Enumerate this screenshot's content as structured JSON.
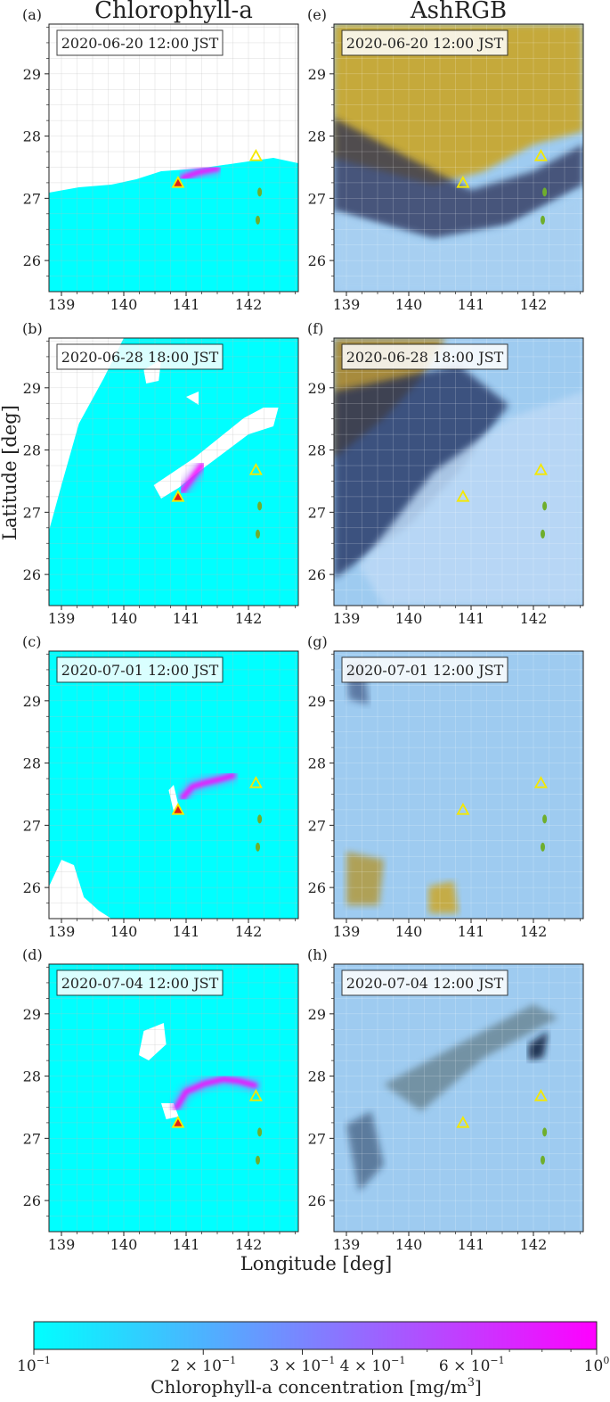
{
  "figure": {
    "column_titles": [
      "Chlorophyll-a",
      "AshRGB"
    ],
    "ylabel": "Latitude [deg]",
    "xlabel": "Longitude [deg]"
  },
  "chart_data": [
    {
      "type": "heatmap",
      "panel_label": "(a)",
      "column": "Chlorophyll-a",
      "timestamp": "2020-06-20 12:00 JST",
      "xlim": [
        138.8,
        142.8
      ],
      "ylim": [
        25.5,
        29.8
      ],
      "xticks": [
        139,
        140,
        141,
        142
      ],
      "yticks": [
        26,
        27,
        28,
        29
      ],
      "grid": true,
      "markers": [
        {
          "lon": 140.87,
          "lat": 27.25,
          "style": "red-triangle"
        },
        {
          "lon": 142.12,
          "lat": 27.68,
          "style": "yellow-triangle"
        }
      ],
      "islands": [
        {
          "lon": 142.18,
          "lat": 27.1
        },
        {
          "lon": 142.15,
          "lat": 26.65
        }
      ],
      "plume": [
        [
          140.95,
          27.33
        ],
        [
          141.2,
          27.42
        ],
        [
          141.5,
          27.48
        ]
      ]
    },
    {
      "type": "heatmap",
      "panel_label": "(e)",
      "column": "AshRGB",
      "timestamp": "2020-06-20 12:00 JST",
      "xlim": [
        138.8,
        142.8
      ],
      "ylim": [
        25.5,
        29.8
      ],
      "xticks": [
        139,
        140,
        141,
        142
      ],
      "yticks": [
        26,
        27,
        28,
        29
      ],
      "grid": true,
      "markers": [
        {
          "lon": 140.87,
          "lat": 27.25,
          "style": "yellow-triangle"
        },
        {
          "lon": 142.12,
          "lat": 27.68,
          "style": "yellow-triangle"
        }
      ],
      "islands": [
        {
          "lon": 142.18,
          "lat": 27.1
        },
        {
          "lon": 142.15,
          "lat": 26.65
        }
      ],
      "plume": []
    },
    {
      "type": "heatmap",
      "panel_label": "(b)",
      "column": "Chlorophyll-a",
      "timestamp": "2020-06-28 18:00 JST",
      "xlim": [
        138.8,
        142.8
      ],
      "ylim": [
        25.5,
        29.8
      ],
      "xticks": [
        139,
        140,
        141,
        142
      ],
      "yticks": [
        26,
        27,
        28,
        29
      ],
      "grid": true,
      "markers": [
        {
          "lon": 140.87,
          "lat": 27.25,
          "style": "red-triangle"
        },
        {
          "lon": 142.12,
          "lat": 27.68,
          "style": "yellow-triangle"
        }
      ],
      "islands": [
        {
          "lon": 142.18,
          "lat": 27.1
        },
        {
          "lon": 142.15,
          "lat": 26.65
        }
      ],
      "plume": [
        [
          140.95,
          27.35
        ],
        [
          141.1,
          27.55
        ],
        [
          141.25,
          27.75
        ]
      ]
    },
    {
      "type": "heatmap",
      "panel_label": "(f)",
      "column": "AshRGB",
      "timestamp": "2020-06-28 18:00 JST",
      "xlim": [
        138.8,
        142.8
      ],
      "ylim": [
        25.5,
        29.8
      ],
      "xticks": [
        139,
        140,
        141,
        142
      ],
      "yticks": [
        26,
        27,
        28,
        29
      ],
      "grid": true,
      "markers": [
        {
          "lon": 140.87,
          "lat": 27.25,
          "style": "yellow-triangle"
        },
        {
          "lon": 142.12,
          "lat": 27.68,
          "style": "yellow-triangle"
        }
      ],
      "islands": [
        {
          "lon": 142.18,
          "lat": 27.1
        },
        {
          "lon": 142.15,
          "lat": 26.65
        }
      ],
      "plume": []
    },
    {
      "type": "heatmap",
      "panel_label": "(c)",
      "column": "Chlorophyll-a",
      "timestamp": "2020-07-01 12:00 JST",
      "xlim": [
        138.8,
        142.8
      ],
      "ylim": [
        25.5,
        29.8
      ],
      "xticks": [
        139,
        140,
        141,
        142
      ],
      "yticks": [
        26,
        27,
        28,
        29
      ],
      "grid": true,
      "markers": [
        {
          "lon": 140.87,
          "lat": 27.25,
          "style": "red-triangle"
        },
        {
          "lon": 142.12,
          "lat": 27.68,
          "style": "yellow-triangle"
        }
      ],
      "islands": [
        {
          "lon": 142.18,
          "lat": 27.1
        },
        {
          "lon": 142.15,
          "lat": 26.65
        }
      ],
      "plume": [
        [
          140.95,
          27.45
        ],
        [
          141.1,
          27.62
        ],
        [
          141.3,
          27.68
        ],
        [
          141.55,
          27.74
        ],
        [
          141.75,
          27.8
        ]
      ]
    },
    {
      "type": "heatmap",
      "panel_label": "(g)",
      "column": "AshRGB",
      "timestamp": "2020-07-01 12:00 JST",
      "xlim": [
        138.8,
        142.8
      ],
      "ylim": [
        25.5,
        29.8
      ],
      "xticks": [
        139,
        140,
        141,
        142
      ],
      "yticks": [
        26,
        27,
        28,
        29
      ],
      "grid": true,
      "markers": [
        {
          "lon": 140.87,
          "lat": 27.25,
          "style": "yellow-triangle"
        },
        {
          "lon": 142.12,
          "lat": 27.68,
          "style": "yellow-triangle"
        }
      ],
      "islands": [
        {
          "lon": 142.18,
          "lat": 27.1
        },
        {
          "lon": 142.15,
          "lat": 26.65
        }
      ],
      "plume": []
    },
    {
      "type": "heatmap",
      "panel_label": "(d)",
      "column": "Chlorophyll-a",
      "timestamp": "2020-07-04 12:00 JST",
      "xlim": [
        138.8,
        142.8
      ],
      "ylim": [
        25.5,
        29.8
      ],
      "xticks": [
        139,
        140,
        141,
        142
      ],
      "yticks": [
        26,
        27,
        28,
        29
      ],
      "grid": true,
      "markers": [
        {
          "lon": 140.87,
          "lat": 27.25,
          "style": "red-triangle"
        },
        {
          "lon": 142.12,
          "lat": 27.68,
          "style": "yellow-triangle"
        }
      ],
      "islands": [
        {
          "lon": 142.18,
          "lat": 27.1
        },
        {
          "lon": 142.15,
          "lat": 26.65
        }
      ],
      "plume": [
        [
          140.85,
          27.5
        ],
        [
          141.0,
          27.75
        ],
        [
          141.3,
          27.88
        ],
        [
          141.6,
          27.95
        ],
        [
          141.85,
          27.92
        ],
        [
          142.1,
          27.85
        ]
      ]
    },
    {
      "type": "heatmap",
      "panel_label": "(h)",
      "column": "AshRGB",
      "timestamp": "2020-07-04 12:00 JST",
      "xlim": [
        138.8,
        142.8
      ],
      "ylim": [
        25.5,
        29.8
      ],
      "xticks": [
        139,
        140,
        141,
        142
      ],
      "yticks": [
        26,
        27,
        28,
        29
      ],
      "grid": true,
      "markers": [
        {
          "lon": 140.87,
          "lat": 27.25,
          "style": "yellow-triangle"
        },
        {
          "lon": 142.12,
          "lat": 27.68,
          "style": "yellow-triangle"
        }
      ],
      "islands": [
        {
          "lon": 142.18,
          "lat": 27.1
        },
        {
          "lon": 142.15,
          "lat": 26.65
        }
      ],
      "plume": []
    }
  ],
  "colorbar": {
    "label_prefix": "Chlorophyll-a concentration [mg/m",
    "label_superscript": "3",
    "label_suffix": "]",
    "scale": "log",
    "range": [
      0.1,
      1.0
    ],
    "ticks": [
      {
        "value": 0.1,
        "base": "10",
        "exp": "−1",
        "coef": ""
      },
      {
        "value": 0.2,
        "base": "10",
        "exp": "−1",
        "coef": "2 × "
      },
      {
        "value": 0.3,
        "base": "10",
        "exp": "−1",
        "coef": "3 × "
      },
      {
        "value": 0.4,
        "base": "10",
        "exp": "−1",
        "coef": "4 × "
      },
      {
        "value": 0.6,
        "base": "10",
        "exp": "−1",
        "coef": "6 × "
      },
      {
        "value": 1.0,
        "base": "10",
        "exp": "0",
        "coef": ""
      }
    ],
    "colors": [
      "#00ffff",
      "#ff00ff"
    ]
  },
  "colors": {
    "ocean": "#00ffff",
    "cloud": "#ffffff",
    "plume_high": "#ff00ff",
    "plume_mid": "#b070ff",
    "ash_yellow": "#c8a830",
    "ash_blue": "#9ecbf0",
    "ash_dark": "#1e2a55",
    "volcano_red": "#e0201a",
    "marker_yellow": "#f5e800"
  }
}
